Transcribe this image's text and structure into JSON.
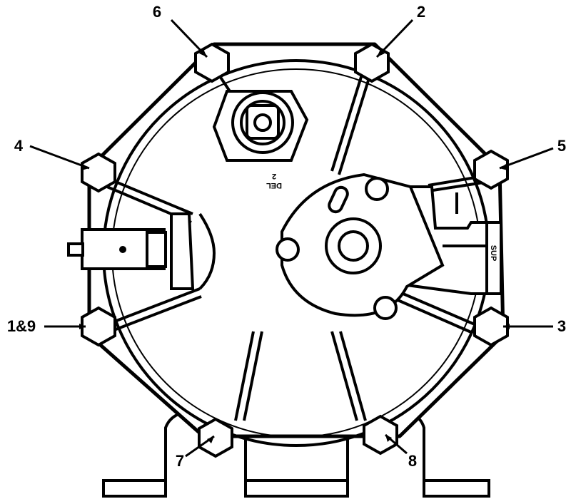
{
  "labels": {
    "bolt_6": "6",
    "bolt_2": "2",
    "bolt_4": "4",
    "bolt_5": "5",
    "bolt_1_9": "1&9",
    "bolt_3": "3",
    "bolt_7": "7",
    "bolt_8": "8"
  },
  "stamp": {
    "line1": "DEL",
    "line2": "2",
    "side": "SUP"
  },
  "colors": {
    "ink": "#000000",
    "paper": "#ffffff"
  }
}
